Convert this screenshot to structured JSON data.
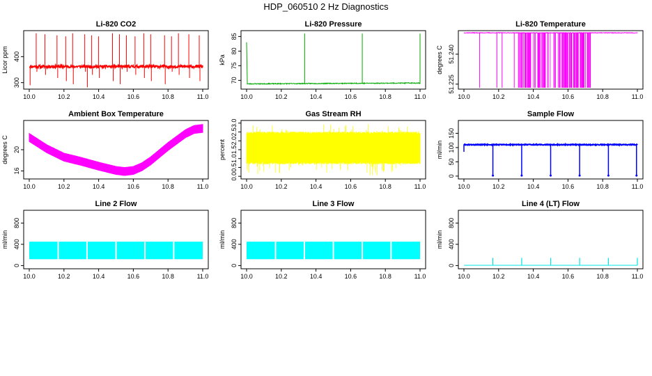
{
  "figure": {
    "title": "HDP_060510  2 Hz Diagnostics"
  },
  "chart_data": [
    {
      "type": "line",
      "title": "Li-820 CO2",
      "xlabel": "",
      "ylabel": "Licor ppm",
      "x_range": [
        10.0,
        11.0
      ],
      "ylim": [
        275,
        500
      ],
      "x_ticks": [
        "10.0",
        "10.2",
        "10.4",
        "10.6",
        "10.8",
        "11.0"
      ],
      "y_ticks": [
        "300",
        "400"
      ],
      "color": "#ff0000",
      "seed": 11,
      "series": [
        {
          "name": "CO2",
          "pattern": "co2",
          "baseline": 362,
          "spikes_x": [
            10.04,
            10.09,
            10.16,
            10.21,
            10.25,
            10.32,
            10.36,
            10.4,
            10.48,
            10.52,
            10.56,
            10.61,
            10.66,
            10.7,
            10.78,
            10.82,
            10.86,
            10.92,
            10.98
          ],
          "spike_top": 490,
          "dip_low": 290
        }
      ]
    },
    {
      "type": "line",
      "title": "Li-820 Pressure",
      "xlabel": "",
      "ylabel": "kPa",
      "x_range": [
        10.0,
        11.0
      ],
      "ylim": [
        67,
        87
      ],
      "x_ticks": [
        "10.0",
        "10.2",
        "10.4",
        "10.6",
        "10.8",
        "11.0"
      ],
      "y_ticks": [
        "70",
        "75",
        "80",
        "85"
      ],
      "color": "#00aa00",
      "seed": 23,
      "series": [
        {
          "name": "Pressure",
          "pattern": "pressure",
          "baseline": 68.8,
          "spikes_x": [
            10.335,
            10.667,
            11.0
          ],
          "spike_top": 86,
          "first_value": 83
        }
      ]
    },
    {
      "type": "line",
      "title": "Li-820 Temperature",
      "xlabel": "",
      "ylabel": "degrees C",
      "x_range": [
        10.0,
        11.0
      ],
      "ylim": [
        51.2225,
        51.2518
      ],
      "x_ticks": [
        "10.0",
        "10.2",
        "10.4",
        "10.6",
        "10.8",
        "11.0"
      ],
      "y_ticks": [
        "51.225",
        "51.240"
      ],
      "color": "#ff00ff",
      "seed": 37,
      "series": [
        {
          "name": "Temperature",
          "pattern": "temperature",
          "baseline": 51.2507,
          "low": 51.2232,
          "drop_x": [
            10.09,
            10.19,
            10.22,
            10.29
          ]
        }
      ]
    },
    {
      "type": "line",
      "title": "Ambient Box Temperature",
      "xlabel": "",
      "ylabel": "degrees C",
      "x_range": [
        10.0,
        11.0
      ],
      "ylim": [
        14.5,
        25.5
      ],
      "x_ticks": [
        "10.0",
        "10.2",
        "10.4",
        "10.6",
        "10.8",
        "11.0"
      ],
      "y_ticks": [
        "16",
        "20"
      ],
      "color": "#ff00ff",
      "seed": 41,
      "series": [
        {
          "name": "Box temperature",
          "pattern": "ambient",
          "x": [
            10.0,
            10.1,
            10.2,
            10.3,
            10.4,
            10.5,
            10.55,
            10.6,
            10.65,
            10.7,
            10.8,
            10.9,
            10.95,
            11.0
          ],
          "values": [
            22.3,
            20.2,
            18.6,
            17.8,
            16.9,
            16.1,
            15.9,
            16.1,
            16.8,
            17.9,
            20.6,
            23.0,
            23.8,
            24.0
          ]
        }
      ]
    },
    {
      "type": "line",
      "title": "Gas Stream RH",
      "xlabel": "",
      "ylabel": "percent",
      "x_range": [
        10.0,
        11.0
      ],
      "ylim": [
        -0.15,
        3.15
      ],
      "x_ticks": [
        "10.0",
        "10.2",
        "10.4",
        "10.6",
        "10.8",
        "11.0"
      ],
      "y_ticks": [
        "0.0",
        "0.5",
        "1.0",
        "1.5",
        "2.0",
        "2.5",
        "3.0"
      ],
      "color": "#ffff00",
      "seed": 53,
      "series": [
        {
          "name": "RH",
          "pattern": "rh",
          "center": 1.45,
          "band": [
            0.75,
            2.45
          ],
          "extremes": [
            0.05,
            2.95
          ]
        }
      ]
    },
    {
      "type": "line",
      "title": "Sample Flow",
      "xlabel": "",
      "ylabel": "ml/min",
      "x_range": [
        10.0,
        11.0
      ],
      "ylim": [
        -10,
        195
      ],
      "x_ticks": [
        "10.0",
        "10.2",
        "10.4",
        "10.6",
        "10.8",
        "11.0"
      ],
      "y_ticks": [
        "0",
        "50",
        "100",
        "150"
      ],
      "color": "#0000ff",
      "seed": 61,
      "series": [
        {
          "name": "Sample flow",
          "pattern": "flowdips",
          "baseline": 110,
          "dips_x": [
            10.167,
            10.333,
            10.5,
            10.667,
            10.833,
            10.995
          ],
          "dip_low": 2
        }
      ]
    },
    {
      "type": "line",
      "title": "Line 2 Flow",
      "xlabel": "",
      "ylabel": "ml/min",
      "x_range": [
        10.0,
        11.0
      ],
      "ylim": [
        -60,
        1040
      ],
      "x_ticks": [
        "10.0",
        "10.2",
        "10.4",
        "10.6",
        "10.8",
        "11.0"
      ],
      "y_ticks": [
        "0",
        "400",
        "800"
      ],
      "color": "#00ffff",
      "seed": 71,
      "series": [
        {
          "name": "Line 2 flow",
          "pattern": "band",
          "band": [
            120,
            450
          ],
          "gaps_x": [
            10.167,
            10.333,
            10.5,
            10.667,
            10.833
          ]
        }
      ]
    },
    {
      "type": "line",
      "title": "Line 3 Flow",
      "xlabel": "",
      "ylabel": "ml/min",
      "x_range": [
        10.0,
        11.0
      ],
      "ylim": [
        -60,
        1040
      ],
      "x_ticks": [
        "10.0",
        "10.2",
        "10.4",
        "10.6",
        "10.8",
        "11.0"
      ],
      "y_ticks": [
        "0",
        "400",
        "800"
      ],
      "color": "#00ffff",
      "seed": 83,
      "series": [
        {
          "name": "Line 3 flow",
          "pattern": "band",
          "band": [
            120,
            450
          ],
          "gaps_x": [
            10.167,
            10.333,
            10.5,
            10.667,
            10.833
          ]
        }
      ]
    },
    {
      "type": "line",
      "title": "Line 4 (LT) Flow",
      "xlabel": "",
      "ylabel": "ml/min",
      "x_range": [
        10.0,
        11.0
      ],
      "ylim": [
        -60,
        1040
      ],
      "x_ticks": [
        "10.0",
        "10.2",
        "10.4",
        "10.6",
        "10.8",
        "11.0"
      ],
      "y_ticks": [
        "0",
        "400",
        "800"
      ],
      "color": "#00e5e5",
      "seed": 97,
      "series": [
        {
          "name": "Line 4 flow",
          "pattern": "spikes",
          "baseline": 5,
          "spikes_x": [
            10.167,
            10.333,
            10.5,
            10.667,
            10.833,
            11.0
          ],
          "spike_top": 145
        }
      ]
    }
  ]
}
